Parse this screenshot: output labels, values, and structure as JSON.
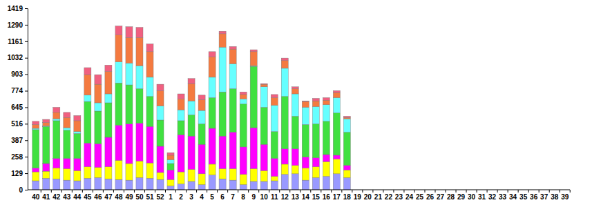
{
  "chart_data": {
    "type": "bar",
    "stacked": true,
    "grid": false,
    "categories": [
      "40",
      "41",
      "42",
      "43",
      "44",
      "45",
      "46",
      "47",
      "48",
      "49",
      "50",
      "51",
      "52",
      "1",
      "2",
      "3",
      "4",
      "5",
      "6",
      "7",
      "8",
      "9",
      "10",
      "11",
      "12",
      "13",
      "14",
      "15",
      "16",
      "17",
      "18",
      "19",
      "20",
      "21",
      "22",
      "23",
      "24",
      "25",
      "26",
      "27",
      "28",
      "29",
      "30",
      "31",
      "32",
      "33",
      "34",
      "35",
      "36",
      "37",
      "38",
      "39"
    ],
    "ylim": [
      0,
      1419
    ],
    "yticks": [
      0,
      129,
      258,
      387,
      516,
      645,
      774,
      903,
      1032,
      1161,
      1290,
      1419
    ],
    "series": [
      {
        "color": "#9999ff",
        "values": [
          70,
          90,
          85,
          75,
          70,
          90,
          95,
          85,
          80,
          75,
          95,
          90,
          80,
          30,
          45,
          65,
          40,
          115,
          85,
          75,
          40,
          65,
          65,
          70,
          120,
          125,
          75,
          95,
          105,
          125,
          95,
          null,
          null,
          null,
          null,
          null,
          null,
          null,
          null,
          null,
          null,
          null,
          null,
          null,
          null,
          null,
          null,
          null,
          null,
          null,
          null,
          null
        ]
      },
      {
        "color": "#ffff00",
        "values": [
          70,
          55,
          85,
          90,
          80,
          90,
          80,
          95,
          150,
          130,
          130,
          120,
          55,
          50,
          95,
          95,
          85,
          85,
          80,
          90,
          80,
          100,
          85,
          35,
          80,
          65,
          95,
          85,
          115,
          115,
          60,
          null,
          null,
          null,
          null,
          null,
          null,
          null,
          null,
          null,
          null,
          null,
          null,
          null,
          null,
          null,
          null,
          null,
          null,
          null,
          null,
          null
        ]
      },
      {
        "color": "#ff00ff",
        "values": [
          30,
          60,
          75,
          80,
          95,
          185,
          185,
          230,
          275,
          310,
          295,
          285,
          205,
          75,
          290,
          260,
          230,
          280,
          255,
          285,
          215,
          320,
          205,
          140,
          120,
          130,
          85,
          70,
          55,
          30,
          35,
          null,
          null,
          null,
          null,
          null,
          null,
          null,
          null,
          null,
          null,
          null,
          null,
          null,
          null,
          null,
          null,
          null,
          null,
          null,
          null,
          null
        ]
      },
      {
        "color": "#40e040",
        "values": [
          300,
          290,
          295,
          220,
          195,
          325,
          255,
          270,
          330,
          305,
          270,
          235,
          205,
          50,
          110,
          165,
          160,
          240,
          345,
          340,
          335,
          480,
          290,
          210,
          410,
          255,
          255,
          265,
          260,
          330,
          260,
          null,
          null,
          null,
          null,
          null,
          null,
          null,
          null,
          null,
          null,
          null,
          null,
          null,
          null,
          null,
          null,
          null,
          null,
          null,
          null,
          null
        ]
      },
      {
        "color": "#66ffff",
        "values": [
          10,
          5,
          15,
          20,
          15,
          50,
          65,
          70,
          165,
          170,
          180,
          150,
          110,
          30,
          85,
          110,
          105,
          160,
          350,
          195,
          40,
          5,
          160,
          205,
          220,
          175,
          135,
          135,
          130,
          120,
          105,
          null,
          null,
          null,
          null,
          null,
          null,
          null,
          null,
          null,
          null,
          null,
          null,
          null,
          null,
          null,
          null,
          null,
          null,
          null,
          null,
          null
        ]
      },
      {
        "color": "#f47a40",
        "values": [
          30,
          25,
          50,
          80,
          85,
          160,
          145,
          175,
          210,
          200,
          220,
          200,
          120,
          35,
          85,
          135,
          85,
          160,
          105,
          115,
          35,
          110,
          20,
          60,
          60,
          40,
          45,
          45,
          35,
          40,
          10,
          null,
          null,
          null,
          null,
          null,
          null,
          null,
          null,
          null,
          null,
          null,
          null,
          null,
          null,
          null,
          null,
          null,
          null,
          null,
          null,
          null
        ]
      },
      {
        "color": "#f06080",
        "values": [
          25,
          25,
          40,
          40,
          40,
          55,
          75,
          50,
          70,
          85,
          80,
          60,
          50,
          20,
          40,
          40,
          35,
          40,
          20,
          20,
          20,
          15,
          5,
          25,
          20,
          15,
          5,
          20,
          20,
          15,
          10,
          null,
          null,
          null,
          null,
          null,
          null,
          null,
          null,
          null,
          null,
          null,
          null,
          null,
          null,
          null,
          null,
          null,
          null,
          null,
          null,
          null
        ]
      }
    ]
  }
}
